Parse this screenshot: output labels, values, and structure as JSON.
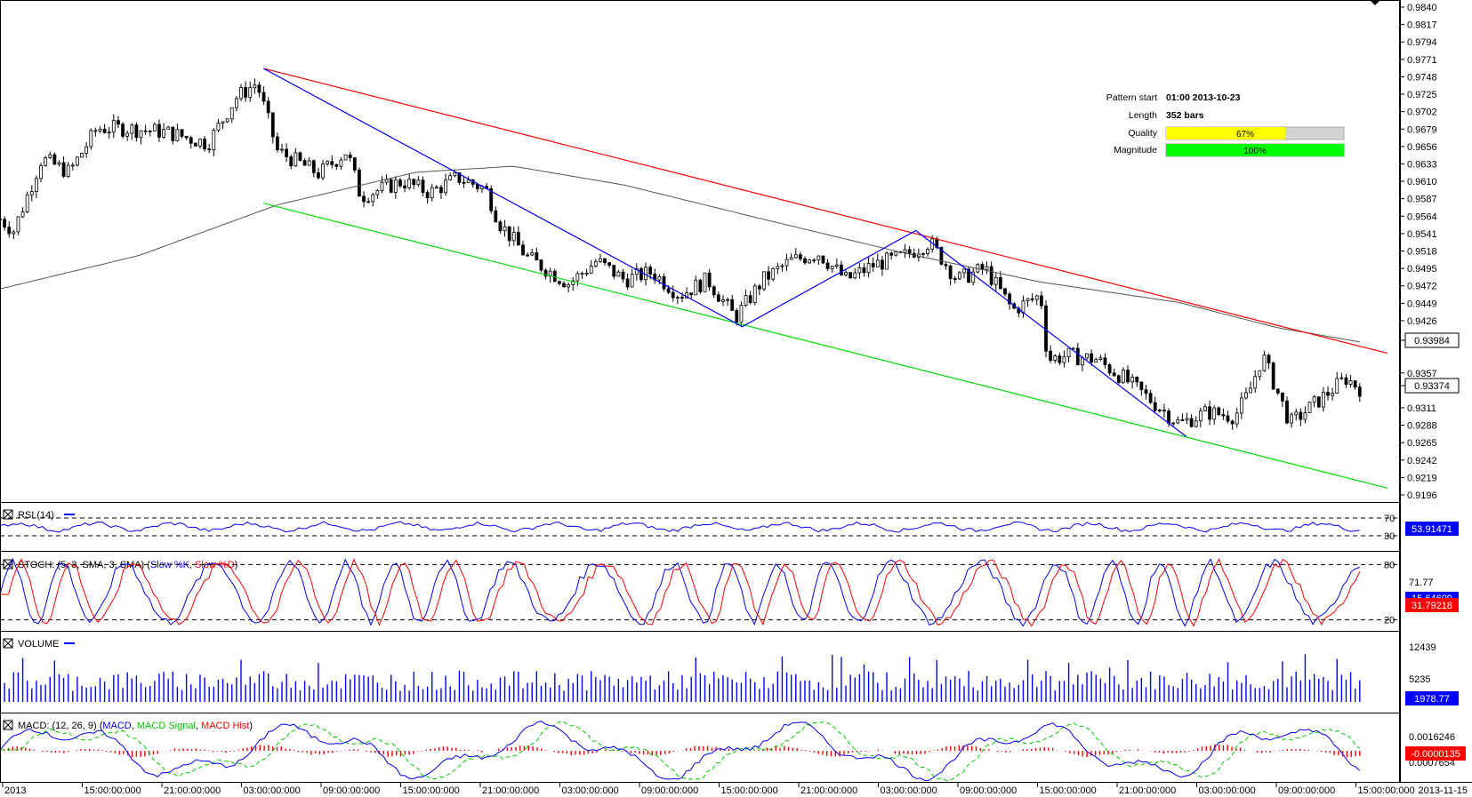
{
  "chart_data": {
    "type": "candlestick",
    "main": {
      "price_ticks": [
        "0.9840",
        "0.9817",
        "0.9794",
        "0.9771",
        "0.9748",
        "0.9725",
        "0.9702",
        "0.9679",
        "0.9656",
        "0.9633",
        "0.9610",
        "0.9587",
        "0.9564",
        "0.9541",
        "0.9518",
        "0.9495",
        "0.9472",
        "0.9449",
        "0.9426",
        "0.9357",
        "0.9311",
        "0.9288",
        "0.9265",
        "0.9242",
        "0.9219",
        "0.9196"
      ],
      "ylim": [
        0.9196,
        0.984
      ],
      "price_labels": [
        "0.93984",
        "0.93374"
      ],
      "pattern_info": [
        {
          "label": "Pattern start",
          "value": "01:00 2013-10-23"
        },
        {
          "label": "Length",
          "value": "352 bars"
        }
      ],
      "quality": {
        "label": "Quality",
        "text": "67%",
        "value": 0.67,
        "color": "#ffff00"
      },
      "magnitude": {
        "label": "Magnitude",
        "text": "100%",
        "value": 1.0,
        "color": "#00ff00"
      },
      "channel_upper": {
        "color": "#ff0000",
        "from": {
          "bar": 0.19,
          "price": 0.9759
        },
        "to": {
          "bar": 1.0,
          "price": 0.9383
        }
      },
      "channel_lower": {
        "color": "#00dd00",
        "from": {
          "bar": 0.19,
          "price": 0.9581
        },
        "to": {
          "bar": 1.0,
          "price": 0.9205
        }
      },
      "zigzag": {
        "color": "#0000ff",
        "points": [
          {
            "bar": 0.19,
            "price": 0.9759
          },
          {
            "bar": 0.535,
            "price": 0.9418
          },
          {
            "bar": 0.66,
            "price": 0.9545
          },
          {
            "bar": 0.855,
            "price": 0.9273
          }
        ]
      },
      "moving_average": [
        {
          "bar": 0.0,
          "price": 0.9468
        },
        {
          "bar": 0.1,
          "price": 0.9512
        },
        {
          "bar": 0.2,
          "price": 0.9579
        },
        {
          "bar": 0.3,
          "price": 0.9622
        },
        {
          "bar": 0.37,
          "price": 0.963
        },
        {
          "bar": 0.45,
          "price": 0.9605
        },
        {
          "bar": 0.55,
          "price": 0.956
        },
        {
          "bar": 0.65,
          "price": 0.9516
        },
        {
          "bar": 0.75,
          "price": 0.9477
        },
        {
          "bar": 0.85,
          "price": 0.945
        },
        {
          "bar": 0.92,
          "price": 0.9417
        },
        {
          "bar": 0.98,
          "price": 0.9398
        }
      ],
      "close_path": [
        {
          "bar": 0.0,
          "price": 0.956
        },
        {
          "bar": 0.01,
          "price": 0.9545
        },
        {
          "bar": 0.03,
          "price": 0.964
        },
        {
          "bar": 0.05,
          "price": 0.9622
        },
        {
          "bar": 0.07,
          "price": 0.968
        },
        {
          "bar": 0.09,
          "price": 0.968
        },
        {
          "bar": 0.12,
          "price": 0.9675
        },
        {
          "bar": 0.15,
          "price": 0.966
        },
        {
          "bar": 0.17,
          "price": 0.972
        },
        {
          "bar": 0.185,
          "price": 0.974
        },
        {
          "bar": 0.2,
          "price": 0.965
        },
        {
          "bar": 0.23,
          "price": 0.962
        },
        {
          "bar": 0.25,
          "price": 0.965
        },
        {
          "bar": 0.26,
          "price": 0.959
        },
        {
          "bar": 0.29,
          "price": 0.961
        },
        {
          "bar": 0.31,
          "price": 0.9595
        },
        {
          "bar": 0.33,
          "price": 0.9615
        },
        {
          "bar": 0.35,
          "price": 0.96
        },
        {
          "bar": 0.36,
          "price": 0.9555
        },
        {
          "bar": 0.38,
          "price": 0.951
        },
        {
          "bar": 0.41,
          "price": 0.9475
        },
        {
          "bar": 0.43,
          "price": 0.9505
        },
        {
          "bar": 0.45,
          "price": 0.948
        },
        {
          "bar": 0.47,
          "price": 0.949
        },
        {
          "bar": 0.49,
          "price": 0.946
        },
        {
          "bar": 0.51,
          "price": 0.948
        },
        {
          "bar": 0.53,
          "price": 0.943
        },
        {
          "bar": 0.55,
          "price": 0.948
        },
        {
          "bar": 0.57,
          "price": 0.9505
        },
        {
          "bar": 0.59,
          "price": 0.9515
        },
        {
          "bar": 0.61,
          "price": 0.948
        },
        {
          "bar": 0.63,
          "price": 0.95
        },
        {
          "bar": 0.65,
          "price": 0.951
        },
        {
          "bar": 0.67,
          "price": 0.953
        },
        {
          "bar": 0.69,
          "price": 0.948
        },
        {
          "bar": 0.71,
          "price": 0.9495
        },
        {
          "bar": 0.73,
          "price": 0.944
        },
        {
          "bar": 0.75,
          "price": 0.946
        },
        {
          "bar": 0.755,
          "price": 0.9375
        },
        {
          "bar": 0.77,
          "price": 0.938
        },
        {
          "bar": 0.79,
          "price": 0.9375
        },
        {
          "bar": 0.81,
          "price": 0.935
        },
        {
          "bar": 0.83,
          "price": 0.932
        },
        {
          "bar": 0.85,
          "price": 0.929
        },
        {
          "bar": 0.87,
          "price": 0.9305
        },
        {
          "bar": 0.89,
          "price": 0.93
        },
        {
          "bar": 0.9,
          "price": 0.933
        },
        {
          "bar": 0.91,
          "price": 0.938
        },
        {
          "bar": 0.93,
          "price": 0.929
        },
        {
          "bar": 0.95,
          "price": 0.932
        },
        {
          "bar": 0.97,
          "price": 0.935
        },
        {
          "bar": 0.98,
          "price": 0.9337
        }
      ],
      "time_ticks": [
        "2013",
        "15:00:00:000",
        "21:00:00:000",
        "03:00:00:000",
        "09:00:00:000",
        "15:00:00:000",
        "21:00:00:000",
        "03:00:00:000",
        "09:00:00:000",
        "15:00:00:000",
        "21:00:00:000",
        "03:00:00:000",
        "09:00:00:000",
        "15:00:00:000",
        "21:00:00:000",
        "03:00:00:000",
        "09:00:00:000",
        "15:00:00:000",
        "2013-11-15"
      ]
    },
    "rsi": {
      "title": "RSI (14)",
      "levels": [
        70,
        30
      ],
      "level_labels": [
        "70",
        "30"
      ],
      "ylim": [
        0,
        100
      ],
      "value_label": "53.91471",
      "line_color": "#0000ff",
      "label_color": "#0000ff"
    },
    "stoch": {
      "title_prefix": "STOCH: (5, 3, SMA, 3, SMA) (",
      "k_name": "Slow %K",
      "separator": ", ",
      "d_name": "Slow %D",
      "title_suffix": ")",
      "levels": [
        80,
        20
      ],
      "level_labels": [
        "80",
        "20"
      ],
      "ylim": [
        10,
        90
      ],
      "axis_value": "71.77",
      "k_value_label": "15.64609",
      "d_value_label": "31.79218",
      "k_color": "#0000ff",
      "d_color": "#ff0000"
    },
    "volume": {
      "title": "VOLUME",
      "ticks": [
        "12439",
        "5235"
      ],
      "tick_values": [
        12439,
        5235
      ],
      "ylim": [
        0,
        15000
      ],
      "value_label": "1978.77",
      "color": "#0000ff"
    },
    "macd": {
      "title_prefix": "MACD: (12, 26, 9) (",
      "macd_name": "MACD",
      "separator": ", ",
      "signal_name": "MACD Signal",
      "hist_name": "MACD Hist",
      "title_suffix": ")",
      "ticks": [
        "0.0016246",
        "0.0007654"
      ],
      "value_label": "-0.0000135",
      "macd_color": "#0000ff",
      "signal_color": "#00cc00",
      "hist_color": "#ff0000"
    }
  }
}
